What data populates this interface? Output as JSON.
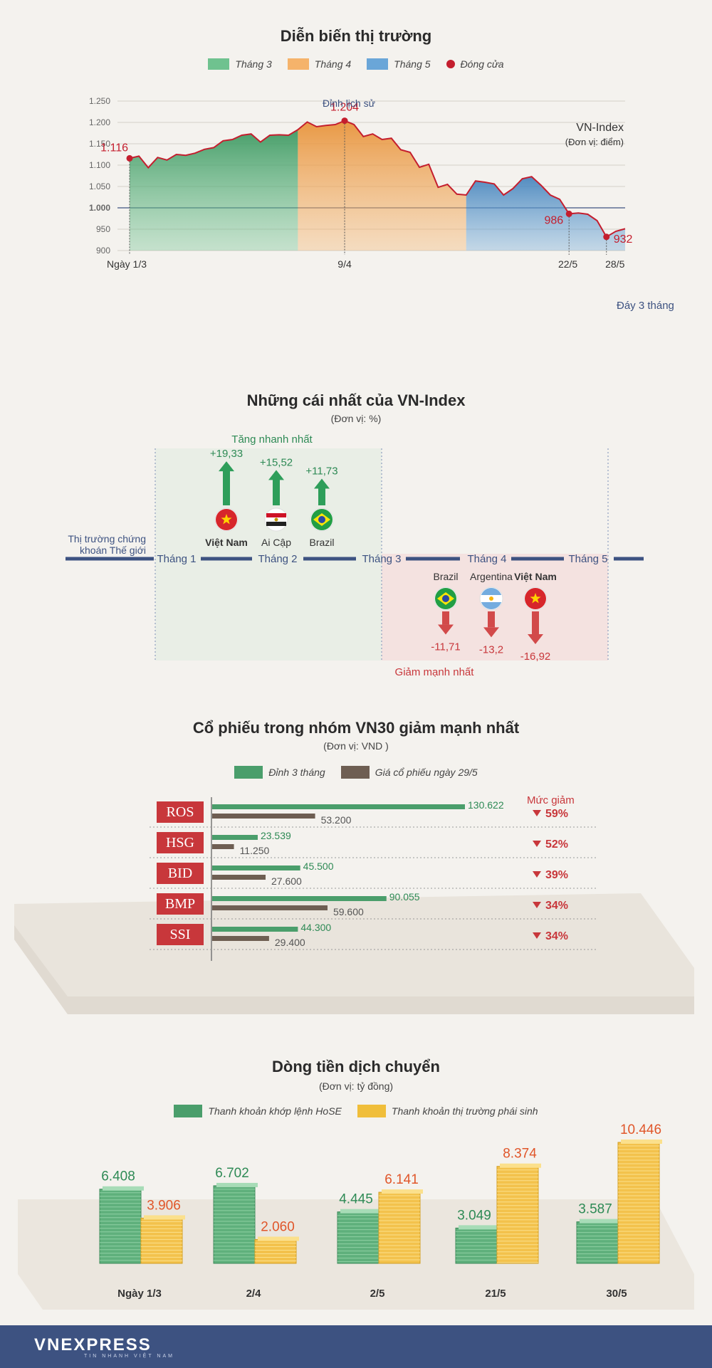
{
  "section1": {
    "title": "Diễn biến thị trường",
    "legend": [
      {
        "label": "Tháng 3",
        "color": "#6fc28f"
      },
      {
        "label": "Tháng 4",
        "color": "#f5b36b"
      },
      {
        "label": "Tháng 5",
        "color": "#6aa6d8"
      },
      {
        "label": "Đóng cửa",
        "color": "#c41e2e"
      }
    ],
    "series_label": "VN-Index",
    "unit": "(Đơn vị: điểm)",
    "peak_label": "Đỉnh lịch sử",
    "bottom_label": "Đáy 3 tháng"
  },
  "chart_data": [
    {
      "type": "area",
      "title": "Diễn biến thị trường",
      "ylabel": "(Đơn vị: điểm)",
      "ylim": [
        900,
        1250
      ],
      "yticks": [
        "900",
        "950",
        "1.000",
        "1.050",
        "1.100",
        "1.150",
        "1.200",
        "1.250"
      ],
      "xtick_labels": [
        "Ngày 1/3",
        "9/4",
        "22/5",
        "28/5"
      ],
      "series": [
        {
          "name": "Tháng 3",
          "values": [
            1116,
            1121,
            1094,
            1118,
            1112,
            1125,
            1123,
            1128,
            1137,
            1141,
            1157,
            1160,
            1170,
            1173,
            1154,
            1170,
            1171,
            1170,
            1183
          ]
        },
        {
          "name": "Tháng 4",
          "values": [
            1183,
            1201,
            1190,
            1193,
            1195,
            1204,
            1195,
            1167,
            1173,
            1160,
            1163,
            1136,
            1130,
            1095,
            1102,
            1048,
            1055,
            1032,
            1030
          ]
        },
        {
          "name": "Tháng 5",
          "values": [
            1030,
            1063,
            1060,
            1056,
            1030,
            1045,
            1068,
            1073,
            1053,
            1030,
            1020,
            986,
            988,
            985,
            970,
            932,
            945,
            951
          ]
        }
      ],
      "annotations": [
        {
          "label": "1.116",
          "value": 1116
        },
        {
          "label": "1.204",
          "value": 1204
        },
        {
          "label": "986",
          "value": 986
        },
        {
          "label": "932",
          "value": 932
        }
      ]
    },
    {
      "type": "bar",
      "title": "Cổ phiếu trong nhóm VN30 giảm mạnh nhất",
      "categories": [
        "ROS",
        "HSG",
        "BID",
        "BMP",
        "SSI"
      ],
      "series": [
        {
          "name": "Đỉnh 3 tháng",
          "values": [
            130622,
            23539,
            45500,
            90055,
            44300
          ],
          "labels": [
            "130.622",
            "23.539",
            "45.500",
            "90.055",
            "44.300"
          ]
        },
        {
          "name": "Giá cổ phiếu ngày 29/5",
          "values": [
            53200,
            11250,
            27600,
            59600,
            29400
          ],
          "labels": [
            "53.200",
            "11.250",
            "27.600",
            "59.600",
            "29.400"
          ]
        }
      ],
      "decline": [
        "59%",
        "52%",
        "39%",
        "34%",
        "34%"
      ]
    },
    {
      "type": "bar",
      "title": "Dòng tiền dịch chuyển",
      "categories": [
        "Ngày 1/3",
        "2/4",
        "2/5",
        "21/5",
        "30/5"
      ],
      "series": [
        {
          "name": "Thanh khoản khớp lệnh HoSE",
          "values": [
            6408,
            6702,
            4445,
            3049,
            3587
          ],
          "labels": [
            "6.408",
            "6.702",
            "4.445",
            "3.049",
            "3.587"
          ]
        },
        {
          "name": "Thanh khoản thị trường phái sinh",
          "values": [
            3906,
            2060,
            6141,
            8374,
            10446
          ],
          "labels": [
            "3.906",
            "2.060",
            "6.141",
            "8.374",
            "10.446"
          ]
        }
      ]
    }
  ],
  "section2": {
    "title": "Những cái nhất của VN-Index",
    "unit": "(Đơn vị: %)",
    "up_title": "Tăng nhanh nhất",
    "down_title": "Giảm mạnh nhất",
    "timeline_label_1": "Thị trường chứng",
    "timeline_label_2": "khoán Thế giới",
    "months": [
      "Tháng 1",
      "Tháng 2",
      "Tháng 3",
      "Tháng 4",
      "Tháng 5"
    ],
    "up": [
      {
        "country": "Việt Nam",
        "value": "+19,33",
        "pct": 19.33,
        "flag": "vietnam-flag-icon"
      },
      {
        "country": "Ai Cập",
        "value": "+15,52",
        "pct": 15.52,
        "flag": "egypt-flag-icon"
      },
      {
        "country": "Brazil",
        "value": "+11,73",
        "pct": 11.73,
        "flag": "brazil-flag-icon"
      }
    ],
    "down": [
      {
        "country": "Brazil",
        "value": "-11,71",
        "pct": -11.71,
        "flag": "brazil-flag-icon"
      },
      {
        "country": "Argentina",
        "value": "-13,2",
        "pct": -13.2,
        "flag": "argentina-flag-icon"
      },
      {
        "country": "Việt Nam",
        "value": "-16,92",
        "pct": -16.92,
        "flag": "vietnam-flag-icon"
      }
    ]
  },
  "section3": {
    "title": "Cổ phiếu trong nhóm VN30 giảm mạnh nhất",
    "unit": "(Đơn vị: VND )",
    "legend": [
      {
        "label": "Đỉnh 3 tháng",
        "color": "#4a9e6b"
      },
      {
        "label": "Giá cổ phiếu ngày 29/5",
        "color": "#6e5e52"
      }
    ],
    "decline_header": "Mức giảm",
    "tickers": [
      "ROS",
      "HSG",
      "BID",
      "BMP",
      "SSI"
    ]
  },
  "section4": {
    "title": "Dòng tiền dịch chuyển",
    "unit": "(Đơn vị: tỷ đồng)",
    "legend": [
      {
        "label": "Thanh khoản khớp lệnh HoSE",
        "color": "#4a9e6b"
      },
      {
        "label": "Thanh khoản thị trường phái sinh",
        "color": "#f0be3a"
      }
    ]
  },
  "footer": {
    "brand": "VNEXPRESS",
    "tagline": "TIN NHANH VIỆT NAM"
  }
}
